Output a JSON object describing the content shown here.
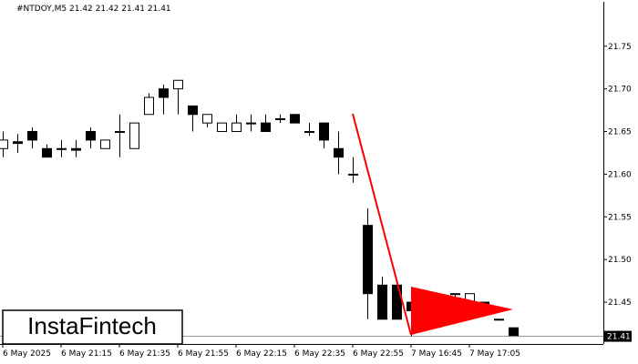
{
  "chart_data": {
    "type": "candlestick",
    "title": "#NTDOY,M5  21.42 21.42 21.41 21.41",
    "categories": [
      "6 May 2025",
      null,
      null,
      null,
      "6 May 21:15",
      null,
      null,
      null,
      "6 May 21:35",
      null,
      null,
      null,
      "6 May 21:55",
      null,
      null,
      null,
      "6 May 22:15",
      null,
      null,
      null,
      "6 May 22:35",
      null,
      null,
      null,
      "6 May 22:55",
      null,
      null,
      null,
      "7 May 16:45",
      null,
      null,
      null,
      "7 May 17:05",
      null,
      null,
      null
    ],
    "open": [
      21.63,
      21.638,
      21.65,
      21.63,
      21.63,
      21.63,
      21.65,
      21.63,
      21.65,
      21.63,
      21.67,
      21.7,
      21.7,
      21.68,
      21.66,
      21.65,
      21.65,
      21.66,
      21.66,
      21.665,
      21.67,
      21.65,
      21.66,
      21.63,
      21.6,
      21.54,
      21.47,
      21.47,
      21.45,
      21.44,
      21.44,
      21.46,
      21.45,
      21.45,
      21.43,
      21.42
    ],
    "high": [
      21.65,
      21.647,
      21.655,
      21.635,
      21.64,
      21.64,
      21.655,
      21.64,
      21.67,
      21.66,
      21.695,
      21.705,
      21.71,
      21.68,
      21.67,
      21.66,
      21.67,
      21.67,
      21.67,
      21.67,
      21.67,
      21.66,
      21.66,
      21.65,
      21.62,
      21.56,
      21.48,
      21.47,
      21.45,
      21.46,
      21.46,
      21.46,
      21.46,
      21.45,
      21.43,
      21.42
    ],
    "low": [
      21.62,
      21.625,
      21.63,
      21.62,
      21.62,
      21.62,
      21.63,
      21.63,
      21.62,
      21.63,
      21.67,
      21.67,
      21.67,
      21.65,
      21.655,
      21.65,
      21.65,
      21.65,
      21.65,
      21.66,
      21.66,
      21.645,
      21.63,
      21.6,
      21.59,
      21.43,
      21.43,
      21.43,
      21.41,
      21.42,
      21.42,
      21.45,
      21.45,
      21.44,
      21.43,
      21.41
    ],
    "close": [
      21.64,
      21.636,
      21.64,
      21.62,
      21.63,
      21.628,
      21.64,
      21.64,
      21.65,
      21.66,
      21.69,
      21.69,
      21.71,
      21.67,
      21.67,
      21.66,
      21.66,
      21.66,
      21.65,
      21.665,
      21.66,
      21.65,
      21.64,
      21.62,
      21.6,
      21.46,
      21.43,
      21.43,
      21.44,
      21.44,
      21.45,
      21.46,
      21.46,
      21.44,
      21.43,
      21.41
    ],
    "up_color": "#ffffff",
    "down_color": "#000000",
    "outline_color": "#000000",
    "ylim": [
      21.401,
      21.802
    ],
    "yticks": [
      {
        "value": 21.45,
        "label": "21.45"
      },
      {
        "value": 21.5,
        "label": "21.50"
      },
      {
        "value": 21.55,
        "label": "21.55"
      },
      {
        "value": 21.6,
        "label": "21.60"
      },
      {
        "value": 21.65,
        "label": "21.65"
      },
      {
        "value": 21.7,
        "label": "21.70"
      },
      21.75
    ],
    "last_price": 21.41,
    "watermark": "InstaFintech"
  }
}
